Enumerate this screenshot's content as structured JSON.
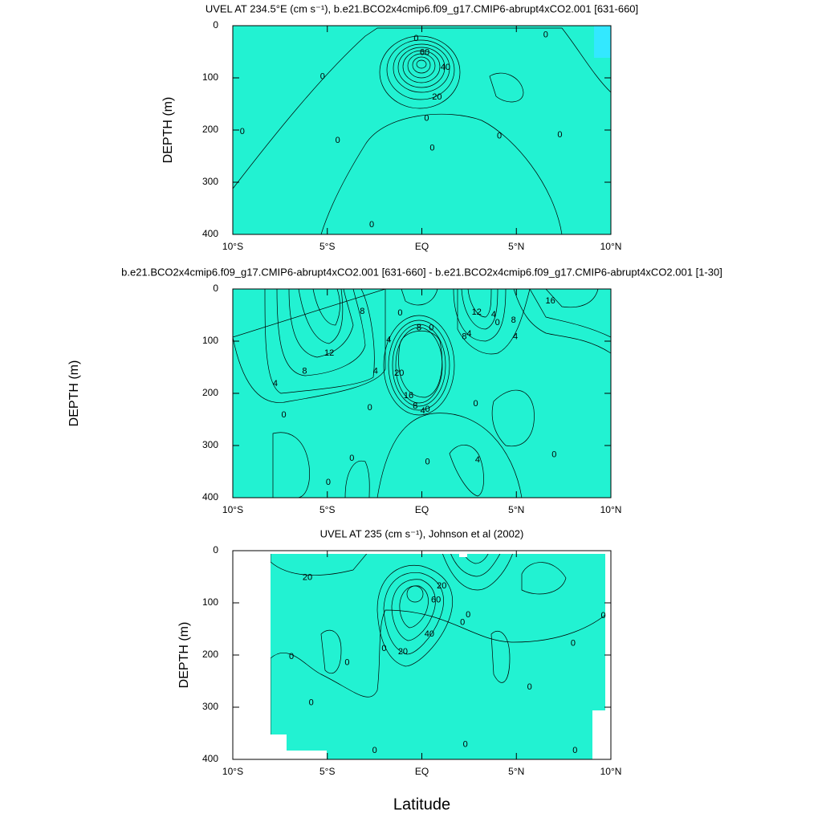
{
  "chart_data": [
    {
      "type": "contour",
      "title": "UVEL AT 234.5°E (cm s⁻¹), b.e21.BCO2x4cmip6.f09_g17.CMIP6-abrupt4xCO2.001 [631-660]",
      "ylabel": "DEPTH (m)",
      "y_reversed": true,
      "xlim": [
        -10,
        10
      ],
      "xticks": [
        {
          "value": -10,
          "label": "10°S"
        },
        {
          "value": -5,
          "label": "5°S"
        },
        {
          "value": 0,
          "label": "EQ"
        },
        {
          "value": 5,
          "label": "5°N"
        },
        {
          "value": 10,
          "label": "10°N"
        }
      ],
      "ylim": [
        0,
        400
      ],
      "yticks": [
        0,
        100,
        200,
        300,
        400
      ],
      "contour_labels": [
        {
          "value": 0,
          "x": -0.3,
          "y": 25
        },
        {
          "value": 60,
          "x": 0.15,
          "y": 52
        },
        {
          "value": 40,
          "x": 1.25,
          "y": 80
        },
        {
          "value": 20,
          "x": 0.8,
          "y": 137
        },
        {
          "value": 0,
          "x": -5.25,
          "y": 98
        },
        {
          "value": 0,
          "x": 6.55,
          "y": 18
        },
        {
          "value": 0,
          "x": 0.25,
          "y": 178
        },
        {
          "value": 0,
          "x": -9.5,
          "y": 203
        },
        {
          "value": 0,
          "x": -4.45,
          "y": 220
        },
        {
          "value": 0,
          "x": 0.55,
          "y": 235
        },
        {
          "value": 0,
          "x": 4.1,
          "y": 212
        },
        {
          "value": 0,
          "x": 7.3,
          "y": 209
        },
        {
          "value": 0,
          "x": -2.65,
          "y": 382
        }
      ]
    },
    {
      "type": "contour",
      "title": "b.e21.BCO2x4cmip6.f09_g17.CMIP6-abrupt4xCO2.001 [631-660] - b.e21.BCO2x4cmip6.f09_g17.CMIP6-abrupt4xCO2.001 [1-30]",
      "ylabel": "DEPTH (m)",
      "y_reversed": true,
      "xlim": [
        -10,
        10
      ],
      "xticks": [
        {
          "value": -10,
          "label": "10°S"
        },
        {
          "value": -5,
          "label": "5°S"
        },
        {
          "value": 0,
          "label": "EQ"
        },
        {
          "value": 5,
          "label": "5°N"
        },
        {
          "value": 10,
          "label": "10°N"
        }
      ],
      "ylim": [
        0,
        400
      ],
      "yticks": [
        0,
        100,
        200,
        300,
        400
      ],
      "contour_labels": [
        {
          "value": 8,
          "x": -3.15,
          "y": 43
        },
        {
          "value": 12,
          "x": -4.9,
          "y": 123
        },
        {
          "value": 8,
          "x": -6.2,
          "y": 158
        },
        {
          "value": 4,
          "x": -7.75,
          "y": 182
        },
        {
          "value": 4,
          "x": -2.45,
          "y": 158
        },
        {
          "value": 4,
          "x": -1.75,
          "y": 98
        },
        {
          "value": 0,
          "x": -1.15,
          "y": 46
        },
        {
          "value": 8,
          "x": -0.15,
          "y": 75
        },
        {
          "value": 0,
          "x": 0.5,
          "y": 75
        },
        {
          "value": 12,
          "x": 2.9,
          "y": 45
        },
        {
          "value": 4,
          "x": 2.5,
          "y": 86
        },
        {
          "value": 8,
          "x": 2.25,
          "y": 92
        },
        {
          "value": 4,
          "x": 3.8,
          "y": 49
        },
        {
          "value": 0,
          "x": 4,
          "y": 65
        },
        {
          "value": 8,
          "x": 4.85,
          "y": 60
        },
        {
          "value": 4,
          "x": 4.95,
          "y": 92
        },
        {
          "value": 16,
          "x": 6.8,
          "y": 23
        },
        {
          "value": 20,
          "x": -1.2,
          "y": 162
        },
        {
          "value": 16,
          "x": -0.7,
          "y": 205
        },
        {
          "value": 8,
          "x": -0.35,
          "y": 225
        },
        {
          "value": 4,
          "x": 0.05,
          "y": 234
        },
        {
          "value": 0,
          "x": -2.75,
          "y": 228
        },
        {
          "value": 0,
          "x": 0.3,
          "y": 231
        },
        {
          "value": 0,
          "x": 2.85,
          "y": 220
        },
        {
          "value": 0,
          "x": -7.3,
          "y": 242
        },
        {
          "value": 0,
          "x": 0.3,
          "y": 332
        },
        {
          "value": 4,
          "x": 2.95,
          "y": 328
        },
        {
          "value": 0,
          "x": 7,
          "y": 318
        },
        {
          "value": 0,
          "x": -4.95,
          "y": 371
        },
        {
          "value": 0,
          "x": -3.7,
          "y": 325
        }
      ]
    },
    {
      "type": "contour",
      "title": "UVEL AT 235 (cm s⁻¹), Johnson et al (2002)",
      "ylabel": "DEPTH (m)",
      "xlabel": "Latitude",
      "y_reversed": true,
      "xlim": [
        -10,
        10
      ],
      "xticks": [
        {
          "value": -10,
          "label": "10°S"
        },
        {
          "value": -5,
          "label": "5°S"
        },
        {
          "value": 0,
          "label": "EQ"
        },
        {
          "value": 5,
          "label": "5°N"
        },
        {
          "value": 10,
          "label": "10°N"
        }
      ],
      "ylim": [
        0,
        400
      ],
      "yticks": [
        0,
        100,
        200,
        300,
        400
      ],
      "contour_labels": [
        {
          "value": 20,
          "x": -6.05,
          "y": 52
        },
        {
          "value": 20,
          "x": 1.05,
          "y": 68
        },
        {
          "value": 60,
          "x": 0.75,
          "y": 95
        },
        {
          "value": 40,
          "x": 0.4,
          "y": 160
        },
        {
          "value": 20,
          "x": -1,
          "y": 194
        },
        {
          "value": 0,
          "x": -2,
          "y": 188
        },
        {
          "value": 0,
          "x": -6.9,
          "y": 203
        },
        {
          "value": 0,
          "x": -3.95,
          "y": 215
        },
        {
          "value": 0,
          "x": -5.85,
          "y": 292
        },
        {
          "value": 0,
          "x": 2.15,
          "y": 138
        },
        {
          "value": 0,
          "x": 2.45,
          "y": 123
        },
        {
          "value": 0,
          "x": 5.7,
          "y": 262
        },
        {
          "value": 0,
          "x": 8,
          "y": 178
        },
        {
          "value": 0,
          "x": 9.6,
          "y": 125
        },
        {
          "value": 0,
          "x": -2.5,
          "y": 383
        },
        {
          "value": 0,
          "x": 2.3,
          "y": 372
        },
        {
          "value": 0,
          "x": 8.1,
          "y": 383
        }
      ]
    }
  ]
}
